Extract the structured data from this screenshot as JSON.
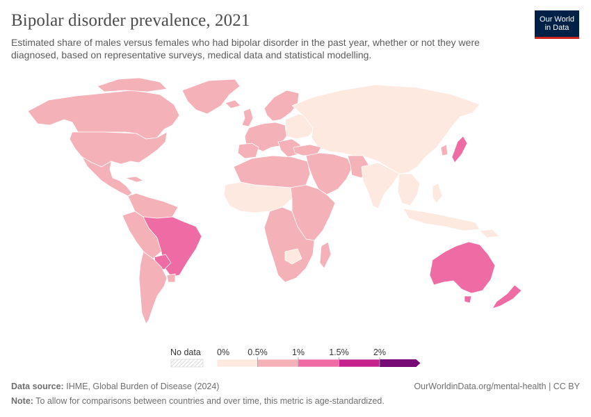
{
  "header": {
    "title": "Bipolar disorder prevalence, 2021",
    "subtitle": "Estimated share of males versus females who had bipolar disorder in the past year, whether or not they were diagnosed, based on representative surveys, medical data and statistical modelling.",
    "logo_line1": "Our World",
    "logo_line2": "in Data"
  },
  "legend": {
    "no_data_label": "No data",
    "ticks": [
      "0%",
      "0.5%",
      "1%",
      "1.5%",
      "2%"
    ],
    "bins": [
      {
        "from": 0,
        "to": 0.5,
        "color": "#fde9e0"
      },
      {
        "from": 0.5,
        "to": 1,
        "color": "#f5b1b8"
      },
      {
        "from": 1,
        "to": 1.5,
        "color": "#ef6ba4"
      },
      {
        "from": 1.5,
        "to": 2,
        "color": "#c5218d"
      },
      {
        "from": 2,
        "to": null,
        "color": "#780a76"
      }
    ]
  },
  "colors": {
    "ocean": "#ffffff",
    "border": "#ffffff",
    "bin_low": "#fde9e0",
    "bin_mid": "#f5b1b8",
    "bin_high": "#ef6ba4",
    "no_data": "#e6e6e6"
  },
  "footer": {
    "source_label": "Data source:",
    "source_text": "IHME, Global Burden of Disease (2024)",
    "url_text": "OurWorldinData.org/mental-health | CC BY",
    "note_label": "Note:",
    "note_text": "To allow for comparisons between countries and over time, this metric is age-standardized."
  }
}
